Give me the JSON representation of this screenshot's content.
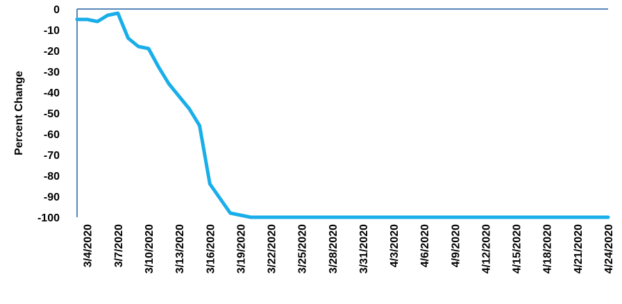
{
  "chart_data": {
    "type": "line",
    "title": "",
    "xlabel": "",
    "ylabel": "Percent Change",
    "ylim": [
      -100,
      0
    ],
    "yticks": [
      0,
      -10,
      -20,
      -30,
      -40,
      -50,
      -60,
      -70,
      -80,
      -90,
      -100
    ],
    "x_tick_labels": [
      "3/4/2020",
      "3/7/2020",
      "3/10/2020",
      "3/13/2020",
      "3/16/2020",
      "3/19/2020",
      "3/22/2020",
      "3/25/2020",
      "3/28/2020",
      "3/31/2020",
      "4/3/2020",
      "4/6/2020",
      "4/9/2020",
      "4/12/2020",
      "4/15/2020",
      "4/18/2020",
      "4/21/2020",
      "4/24/2020"
    ],
    "line_color": "#19AEEA",
    "axis_color": "#1F5FA0",
    "grid": false,
    "series": [
      {
        "x": [
          "3/3/2020",
          "3/4/2020",
          "3/5/2020",
          "3/6/2020",
          "3/7/2020",
          "3/8/2020",
          "3/9/2020",
          "3/10/2020",
          "3/11/2020",
          "3/12/2020",
          "3/13/2020",
          "3/14/2020",
          "3/15/2020",
          "3/16/2020",
          "3/17/2020",
          "3/18/2020",
          "3/19/2020",
          "3/20/2020",
          "3/21/2020",
          "3/22/2020",
          "3/23/2020",
          "3/24/2020",
          "3/25/2020",
          "3/26/2020",
          "3/27/2020",
          "3/28/2020",
          "3/29/2020",
          "3/30/2020",
          "3/31/2020",
          "4/1/2020",
          "4/2/2020",
          "4/3/2020",
          "4/4/2020",
          "4/5/2020",
          "4/6/2020",
          "4/7/2020",
          "4/8/2020",
          "4/9/2020",
          "4/10/2020",
          "4/11/2020",
          "4/12/2020",
          "4/13/2020",
          "4/14/2020",
          "4/15/2020",
          "4/16/2020",
          "4/17/2020",
          "4/18/2020",
          "4/19/2020",
          "4/20/2020",
          "4/21/2020",
          "4/22/2020",
          "4/23/2020",
          "4/24/2020"
        ],
        "values": [
          -5,
          -5,
          -6,
          -3,
          -2,
          -14,
          -18,
          -19,
          -28,
          -36,
          -42,
          -48,
          -56,
          -84,
          -91,
          -98,
          -99,
          -100,
          -100,
          -100,
          -100,
          -100,
          -100,
          -100,
          -100,
          -100,
          -100,
          -100,
          -100,
          -100,
          -100,
          -100,
          -100,
          -100,
          -100,
          -100,
          -100,
          -100,
          -100,
          -100,
          -100,
          -100,
          -100,
          -100,
          -100,
          -100,
          -100,
          -100,
          -100,
          -100,
          -100,
          -100,
          -100
        ]
      }
    ]
  }
}
